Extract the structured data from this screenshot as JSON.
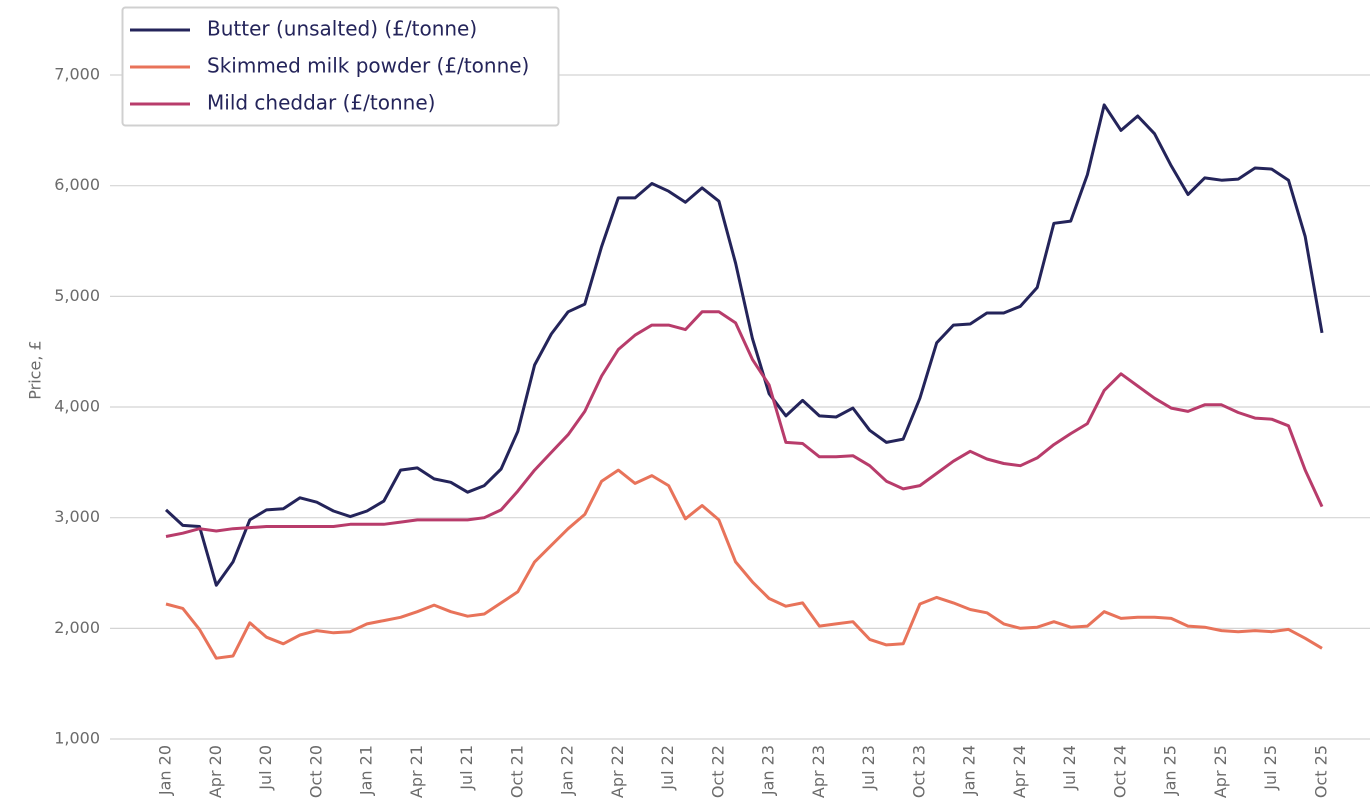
{
  "chart_data": {
    "type": "line",
    "y_label": "Price, £",
    "categories": [
      "Jan 20",
      null,
      null,
      "Apr 20",
      null,
      null,
      "Jul 20",
      null,
      null,
      "Oct 20",
      null,
      null,
      "Jan 21",
      null,
      null,
      "Apr 21",
      null,
      null,
      "Jul 21",
      null,
      null,
      "Oct 21",
      null,
      null,
      "Jan 22",
      null,
      null,
      "Apr 22",
      null,
      null,
      "Jul 22",
      null,
      null,
      "Oct 22",
      null,
      null,
      "Jan 23",
      null,
      null,
      "Apr 23",
      null,
      null,
      "Jul 23",
      null,
      null,
      "Oct 23",
      null,
      null,
      "Jan 24",
      null,
      null,
      "Apr 24",
      null,
      null,
      "Jul 24",
      null,
      null,
      "Oct 24",
      null,
      null,
      "Jan 25",
      null,
      null,
      "Apr 25",
      null,
      null,
      "Jul 25",
      null,
      null,
      "Oct 25"
    ],
    "series": [
      {
        "name": "Butter (unsalted) (£/tonne)",
        "color": "#24245a",
        "values": [
          3070,
          2930,
          2920,
          2390,
          2600,
          2980,
          3070,
          3080,
          3180,
          3140,
          3060,
          3010,
          3060,
          3150,
          3430,
          3450,
          3350,
          3320,
          3230,
          3290,
          3440,
          3780,
          4380,
          4660,
          4860,
          4930,
          5450,
          5890,
          5890,
          6020,
          5950,
          5850,
          5980,
          5860,
          5300,
          4620,
          4120,
          3920,
          4060,
          3920,
          3910,
          3990,
          3790,
          3680,
          3710,
          4080,
          4580,
          4740,
          4750,
          4850,
          4850,
          4910,
          5080,
          5660,
          5680,
          6100,
          6730,
          6500,
          6630,
          6470,
          6180,
          5920,
          6070,
          6050,
          6060,
          6160,
          6150,
          6050,
          5540,
          4670
        ]
      },
      {
        "name": "Skimmed milk powder (£/tonne)",
        "color": "#e8735a",
        "values": [
          2220,
          2180,
          1990,
          1730,
          1750,
          2050,
          1920,
          1860,
          1940,
          1980,
          1960,
          1970,
          2040,
          2070,
          2100,
          2150,
          2210,
          2150,
          2110,
          2130,
          2230,
          2330,
          2600,
          2750,
          2900,
          3030,
          3330,
          3430,
          3310,
          3380,
          3290,
          2990,
          3110,
          2980,
          2600,
          2420,
          2270,
          2200,
          2230,
          2020,
          2040,
          2060,
          1900,
          1850,
          1860,
          2220,
          2280,
          2230,
          2170,
          2140,
          2040,
          2000,
          2010,
          2060,
          2010,
          2020,
          2150,
          2090,
          2100,
          2100,
          2090,
          2020,
          2010,
          1980,
          1970,
          1980,
          1970,
          1990,
          1910,
          1820
        ]
      },
      {
        "name": "Mild cheddar (£/tonne)",
        "color": "#b83c6b",
        "values": [
          2830,
          2860,
          2900,
          2880,
          2900,
          2910,
          2920,
          2920,
          2920,
          2920,
          2920,
          2940,
          2940,
          2940,
          2960,
          2980,
          2980,
          2980,
          2980,
          3000,
          3070,
          3240,
          3430,
          3590,
          3750,
          3960,
          4280,
          4520,
          4650,
          4740,
          4740,
          4700,
          4860,
          4860,
          4760,
          4430,
          4200,
          3680,
          3670,
          3550,
          3550,
          3560,
          3470,
          3330,
          3260,
          3290,
          3400,
          3510,
          3600,
          3530,
          3490,
          3470,
          3540,
          3660,
          3760,
          3850,
          4150,
          4300,
          4190,
          4080,
          3990,
          3960,
          4020,
          4020,
          3950,
          3900,
          3890,
          3830,
          3430,
          3100
        ]
      }
    ],
    "ylim": [
      1000,
      7500
    ],
    "yticks": [
      {
        "value": 1000,
        "label": "1,000"
      },
      {
        "value": 2000,
        "label": "2,000"
      },
      {
        "value": 3000,
        "label": "3,000"
      },
      {
        "value": 4000,
        "label": "4,000"
      },
      {
        "value": 5000,
        "label": "5,000"
      },
      {
        "value": 6000,
        "label": "6,000"
      },
      {
        "value": 7000,
        "label": "7,000"
      }
    ],
    "grid": true,
    "legend": "upper left"
  }
}
